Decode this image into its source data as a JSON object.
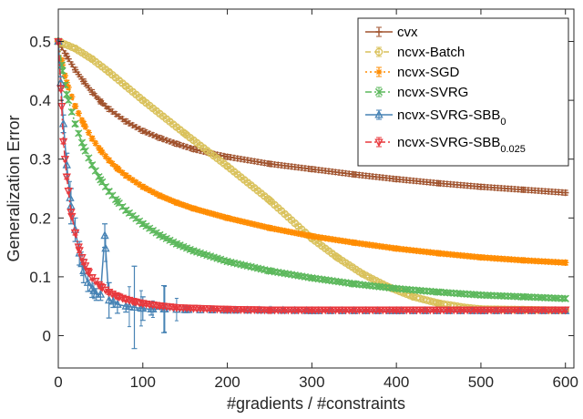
{
  "chart_data": {
    "type": "line",
    "title": "",
    "xlabel": "#gradients / #constraints",
    "ylabel": "Generalization Error",
    "xlim": [
      0,
      610
    ],
    "ylim": [
      -0.055,
      0.555
    ],
    "xticks": [
      0,
      100,
      200,
      300,
      400,
      500,
      600
    ],
    "yticks": [
      0,
      0.1,
      0.2,
      0.3,
      0.4,
      0.5
    ],
    "xtick_labels": [
      "0",
      "100",
      "200",
      "300",
      "400",
      "500",
      "600"
    ],
    "ytick_labels": [
      "0",
      "0.1",
      "0.2",
      "0.3",
      "0.4",
      "0.5"
    ],
    "grid": false,
    "legend_position": "top-right",
    "series": [
      {
        "name": "cvx",
        "legend_label": "cvx",
        "color": "#A0522D",
        "marker": "plus",
        "dash": "solid",
        "x": [
          0,
          10,
          20,
          30,
          40,
          50,
          60,
          80,
          100,
          120,
          140,
          160,
          180,
          200,
          250,
          300,
          350,
          400,
          450,
          500,
          550,
          600
        ],
        "y": [
          0.5,
          0.475,
          0.452,
          0.432,
          0.414,
          0.398,
          0.385,
          0.364,
          0.348,
          0.336,
          0.326,
          0.317,
          0.31,
          0.304,
          0.292,
          0.283,
          0.274,
          0.266,
          0.259,
          0.253,
          0.248,
          0.243
        ],
        "err": 0.004
      },
      {
        "name": "ncvx-Batch",
        "legend_label": "ncvx-Batch",
        "color": "#D9C15A",
        "marker": "circle",
        "dash": "dashed",
        "x": [
          0,
          20,
          40,
          60,
          80,
          100,
          150,
          200,
          250,
          300,
          330,
          360,
          390,
          420,
          450,
          480,
          500,
          550,
          600
        ],
        "y": [
          0.5,
          0.488,
          0.47,
          0.448,
          0.424,
          0.4,
          0.343,
          0.288,
          0.23,
          0.165,
          0.133,
          0.105,
          0.083,
          0.066,
          0.055,
          0.048,
          0.045,
          0.044,
          0.043
        ],
        "err": 0.003
      },
      {
        "name": "ncvx-SGD",
        "legend_label": "ncvx-SGD",
        "color": "#FF8C00",
        "marker": "asterisk",
        "dash": "dotted",
        "x": [
          0,
          5,
          10,
          20,
          30,
          40,
          50,
          60,
          70,
          80,
          100,
          120,
          140,
          160,
          200,
          250,
          300,
          350,
          400,
          450,
          500,
          550,
          600
        ],
        "y": [
          0.5,
          0.46,
          0.43,
          0.39,
          0.36,
          0.335,
          0.315,
          0.298,
          0.284,
          0.272,
          0.253,
          0.238,
          0.226,
          0.216,
          0.2,
          0.183,
          0.169,
          0.158,
          0.148,
          0.14,
          0.133,
          0.128,
          0.124
        ],
        "err": 0.004
      },
      {
        "name": "ncvx-SVRG",
        "legend_label": "ncvx-SVRG",
        "color": "#5CB85C",
        "marker": "x",
        "dash": "dashdot",
        "x": [
          0,
          5,
          10,
          20,
          30,
          40,
          50,
          60,
          70,
          80,
          100,
          120,
          140,
          160,
          200,
          250,
          300,
          350,
          400,
          450,
          500,
          550,
          600
        ],
        "y": [
          0.5,
          0.45,
          0.41,
          0.36,
          0.32,
          0.29,
          0.265,
          0.245,
          0.228,
          0.213,
          0.19,
          0.171,
          0.156,
          0.144,
          0.126,
          0.11,
          0.098,
          0.088,
          0.08,
          0.074,
          0.069,
          0.066,
          0.063
        ],
        "err": 0.004
      },
      {
        "name": "ncvx-SVRG-SBB0",
        "legend_label": "ncvx-SVRG-SBB",
        "legend_subscript": "0",
        "color": "#4682B4",
        "marker": "triangle-up",
        "dash": "solid",
        "x": [
          0,
          3,
          6,
          10,
          15,
          20,
          25,
          30,
          35,
          40,
          45,
          50,
          55,
          60,
          65,
          70,
          80,
          90,
          100,
          110,
          125,
          150,
          200,
          250,
          300,
          400,
          500,
          600
        ],
        "y": [
          0.5,
          0.43,
          0.36,
          0.29,
          0.22,
          0.18,
          0.14,
          0.11,
          0.09,
          0.08,
          0.07,
          0.07,
          0.17,
          0.06,
          0.058,
          0.053,
          0.05,
          0.048,
          0.046,
          0.045,
          0.045,
          0.044,
          0.043,
          0.043,
          0.042,
          0.042,
          0.042,
          0.042
        ],
        "err": [
          0,
          0.01,
          0.015,
          0.02,
          0.03,
          0.02,
          0.02,
          0.02,
          0.015,
          0.015,
          0.01,
          0.01,
          0.02,
          0.03,
          0.01,
          0.015,
          0.01,
          0.07,
          0.02,
          0.01,
          0.04,
          0.005,
          0.004,
          0.004,
          0.003,
          0.003,
          0.003,
          0.003
        ]
      },
      {
        "name": "ncvx-SVRG-SBB0.025",
        "legend_label": "ncvx-SVRG-SBB",
        "legend_subscript": "0.025",
        "color": "#E8383D",
        "marker": "triangle-down",
        "dash": "dashdot",
        "x": [
          0,
          3,
          6,
          10,
          15,
          20,
          25,
          30,
          35,
          40,
          50,
          60,
          70,
          80,
          90,
          100,
          120,
          140,
          160,
          200,
          250,
          300,
          400,
          500,
          600
        ],
        "y": [
          0.5,
          0.42,
          0.33,
          0.27,
          0.21,
          0.175,
          0.145,
          0.125,
          0.11,
          0.099,
          0.084,
          0.074,
          0.067,
          0.062,
          0.058,
          0.055,
          0.051,
          0.048,
          0.047,
          0.045,
          0.044,
          0.044,
          0.044,
          0.044,
          0.044
        ],
        "err": 0.004
      }
    ]
  }
}
